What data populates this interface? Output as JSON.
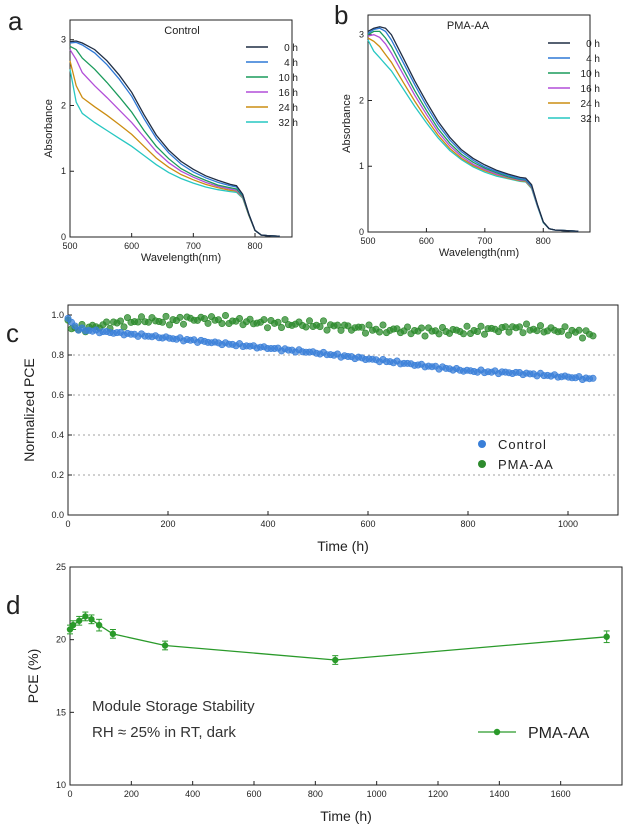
{
  "panels": {
    "a": {
      "letter": "a"
    },
    "b": {
      "letter": "b"
    },
    "c": {
      "letter": "c"
    },
    "d": {
      "letter": "d"
    }
  },
  "colors": {
    "0 h": "#1f2d44",
    "4 h": "#2e78d6",
    "10 h": "#1a9b5b",
    "16 h": "#b24fd8",
    "24 h": "#cc8d12",
    "32 h": "#27c7c2",
    "control_marker": "#3a7fd8",
    "pma_marker": "#2e8b2e",
    "module_line": "#2a9a2a",
    "grid": "#a0a0a0"
  },
  "chart_data": [
    {
      "id": "a",
      "type": "line",
      "title": "Control",
      "xlabel": "Wavelength(nm)",
      "ylabel": "Absorbance",
      "xlim": [
        500,
        860
      ],
      "ylim": [
        0,
        3.3
      ],
      "xticks": [
        500,
        600,
        700,
        800
      ],
      "yticks": [
        0,
        1,
        2,
        3
      ],
      "legend_position": "top-right",
      "x": [
        500,
        510,
        520,
        540,
        560,
        580,
        600,
        620,
        640,
        660,
        680,
        700,
        720,
        740,
        760,
        770,
        780,
        790,
        800,
        810,
        820,
        840
      ],
      "series": [
        {
          "name": "0 h",
          "values": [
            2.97,
            2.98,
            2.95,
            2.85,
            2.68,
            2.46,
            2.2,
            1.86,
            1.55,
            1.32,
            1.15,
            1.03,
            0.93,
            0.86,
            0.8,
            0.78,
            0.65,
            0.35,
            0.1,
            0.03,
            0.02,
            0.01
          ]
        },
        {
          "name": "4 h",
          "values": [
            2.95,
            2.96,
            2.92,
            2.8,
            2.62,
            2.4,
            2.14,
            1.8,
            1.5,
            1.28,
            1.11,
            0.99,
            0.9,
            0.83,
            0.78,
            0.76,
            0.64,
            0.35,
            0.1,
            0.03,
            0.02,
            0.01
          ]
        },
        {
          "name": "10 h",
          "values": [
            2.9,
            2.85,
            2.72,
            2.55,
            2.35,
            2.13,
            1.9,
            1.62,
            1.38,
            1.19,
            1.04,
            0.94,
            0.86,
            0.79,
            0.75,
            0.73,
            0.62,
            0.34,
            0.1,
            0.03,
            0.02,
            0.01
          ]
        },
        {
          "name": "16 h",
          "values": [
            2.85,
            2.7,
            2.5,
            2.3,
            2.12,
            1.93,
            1.74,
            1.52,
            1.3,
            1.13,
            1.0,
            0.91,
            0.83,
            0.77,
            0.73,
            0.71,
            0.61,
            0.34,
            0.1,
            0.03,
            0.02,
            0.01
          ]
        },
        {
          "name": "24 h",
          "values": [
            2.68,
            2.3,
            2.12,
            1.98,
            1.85,
            1.71,
            1.56,
            1.38,
            1.2,
            1.06,
            0.95,
            0.87,
            0.8,
            0.75,
            0.71,
            0.7,
            0.6,
            0.33,
            0.1,
            0.03,
            0.02,
            0.01
          ]
        },
        {
          "name": "32 h",
          "values": [
            2.55,
            2.05,
            1.88,
            1.74,
            1.62,
            1.5,
            1.38,
            1.24,
            1.1,
            0.98,
            0.89,
            0.82,
            0.76,
            0.72,
            0.69,
            0.68,
            0.59,
            0.33,
            0.1,
            0.03,
            0.02,
            0.01
          ]
        }
      ]
    },
    {
      "id": "b",
      "type": "line",
      "title": "PMA-AA",
      "xlabel": "Wavelength(nm)",
      "ylabel": "Absorbance",
      "xlim": [
        500,
        880
      ],
      "ylim": [
        0,
        3.3
      ],
      "xticks": [
        500,
        600,
        700,
        800
      ],
      "yticks": [
        0,
        1,
        2,
        3
      ],
      "legend_position": "top-right",
      "x": [
        500,
        510,
        520,
        530,
        540,
        560,
        580,
        600,
        620,
        640,
        660,
        680,
        700,
        720,
        740,
        760,
        770,
        780,
        790,
        800,
        810,
        820,
        840,
        860
      ],
      "series": [
        {
          "name": "0 h",
          "values": [
            3.05,
            3.1,
            3.12,
            3.1,
            3.0,
            2.65,
            2.3,
            1.98,
            1.68,
            1.44,
            1.25,
            1.12,
            1.02,
            0.94,
            0.88,
            0.83,
            0.82,
            0.72,
            0.42,
            0.15,
            0.05,
            0.03,
            0.02,
            0.01
          ]
        },
        {
          "name": "4 h",
          "values": [
            3.02,
            3.08,
            3.1,
            3.05,
            2.92,
            2.58,
            2.24,
            1.92,
            1.63,
            1.4,
            1.22,
            1.09,
            0.99,
            0.92,
            0.86,
            0.81,
            0.8,
            0.7,
            0.41,
            0.15,
            0.05,
            0.03,
            0.02,
            0.01
          ]
        },
        {
          "name": "10 h",
          "values": [
            3.0,
            3.05,
            3.05,
            2.95,
            2.82,
            2.48,
            2.15,
            1.85,
            1.57,
            1.35,
            1.18,
            1.06,
            0.97,
            0.9,
            0.84,
            0.8,
            0.79,
            0.69,
            0.41,
            0.15,
            0.05,
            0.03,
            0.02,
            0.01
          ]
        },
        {
          "name": "16 h",
          "values": [
            2.98,
            3.0,
            2.96,
            2.86,
            2.72,
            2.4,
            2.08,
            1.79,
            1.52,
            1.31,
            1.15,
            1.03,
            0.95,
            0.88,
            0.83,
            0.79,
            0.78,
            0.68,
            0.4,
            0.15,
            0.05,
            0.03,
            0.02,
            0.01
          ]
        },
        {
          "name": "24 h",
          "values": [
            2.95,
            2.9,
            2.82,
            2.7,
            2.58,
            2.28,
            1.99,
            1.72,
            1.47,
            1.27,
            1.12,
            1.01,
            0.93,
            0.87,
            0.82,
            0.78,
            0.77,
            0.67,
            0.4,
            0.15,
            0.05,
            0.03,
            0.02,
            0.01
          ]
        },
        {
          "name": "32 h",
          "values": [
            2.92,
            2.75,
            2.65,
            2.55,
            2.45,
            2.18,
            1.91,
            1.66,
            1.43,
            1.24,
            1.1,
            0.99,
            0.91,
            0.85,
            0.81,
            0.77,
            0.76,
            0.66,
            0.39,
            0.14,
            0.05,
            0.03,
            0.02,
            0.01
          ]
        }
      ]
    },
    {
      "id": "c",
      "type": "scatter",
      "xlabel": "Time (h)",
      "ylabel": "Normalized PCE",
      "xlim": [
        0,
        1100
      ],
      "ylim": [
        0.0,
        1.05
      ],
      "xticks": [
        0,
        200,
        400,
        600,
        800,
        1000
      ],
      "yticks": [
        "0.0",
        "0.2",
        "0.4",
        "0.6",
        "0.8",
        "1.0"
      ],
      "grid": "dotted horizontal lines at 0.2, 0.4, 0.6, 0.8",
      "legend_position": "bottom-right",
      "series": [
        {
          "name": "Control",
          "trend": {
            "x": [
              0,
              20,
              50,
              100,
              200,
              300,
              400,
              500,
              600,
              700,
              800,
              900,
              1000,
              1050
            ],
            "y": [
              0.98,
              0.93,
              0.92,
              0.91,
              0.885,
              0.86,
              0.835,
              0.81,
              0.78,
              0.75,
              0.72,
              0.71,
              0.69,
              0.68
            ]
          }
        },
        {
          "name": "PMA-AA",
          "trend": {
            "x": [
              0,
              20,
              50,
              100,
              150,
              200,
              250,
              300,
              400,
              500,
              600,
              700,
              800,
              900,
              1000,
              1050
            ],
            "y": [
              0.95,
              0.93,
              0.94,
              0.96,
              0.975,
              0.97,
              0.98,
              0.975,
              0.96,
              0.95,
              0.93,
              0.92,
              0.92,
              0.935,
              0.92,
              0.9
            ]
          }
        }
      ]
    },
    {
      "id": "d",
      "type": "line",
      "xlabel": "Time (h)",
      "ylabel": "PCE (%)",
      "xlim": [
        0,
        1800
      ],
      "ylim": [
        10,
        25
      ],
      "xticks": [
        0,
        200,
        400,
        600,
        800,
        1000,
        1200,
        1400,
        1600
      ],
      "yticks": [
        10,
        15,
        20,
        25
      ],
      "legend_position": "bottom-right",
      "annotation": [
        "Module Storage Stability",
        "RH ≈ 25% in RT, dark"
      ],
      "series": [
        {
          "name": "PMA-AA",
          "x": [
            0,
            10,
            30,
            50,
            70,
            95,
            140,
            310,
            865,
            1750
          ],
          "values": [
            20.7,
            21.0,
            21.3,
            21.6,
            21.4,
            21.0,
            20.4,
            19.6,
            18.6,
            20.2
          ],
          "errors": [
            0.3,
            0.3,
            0.3,
            0.3,
            0.3,
            0.4,
            0.3,
            0.3,
            0.3,
            0.4
          ]
        }
      ]
    }
  ]
}
